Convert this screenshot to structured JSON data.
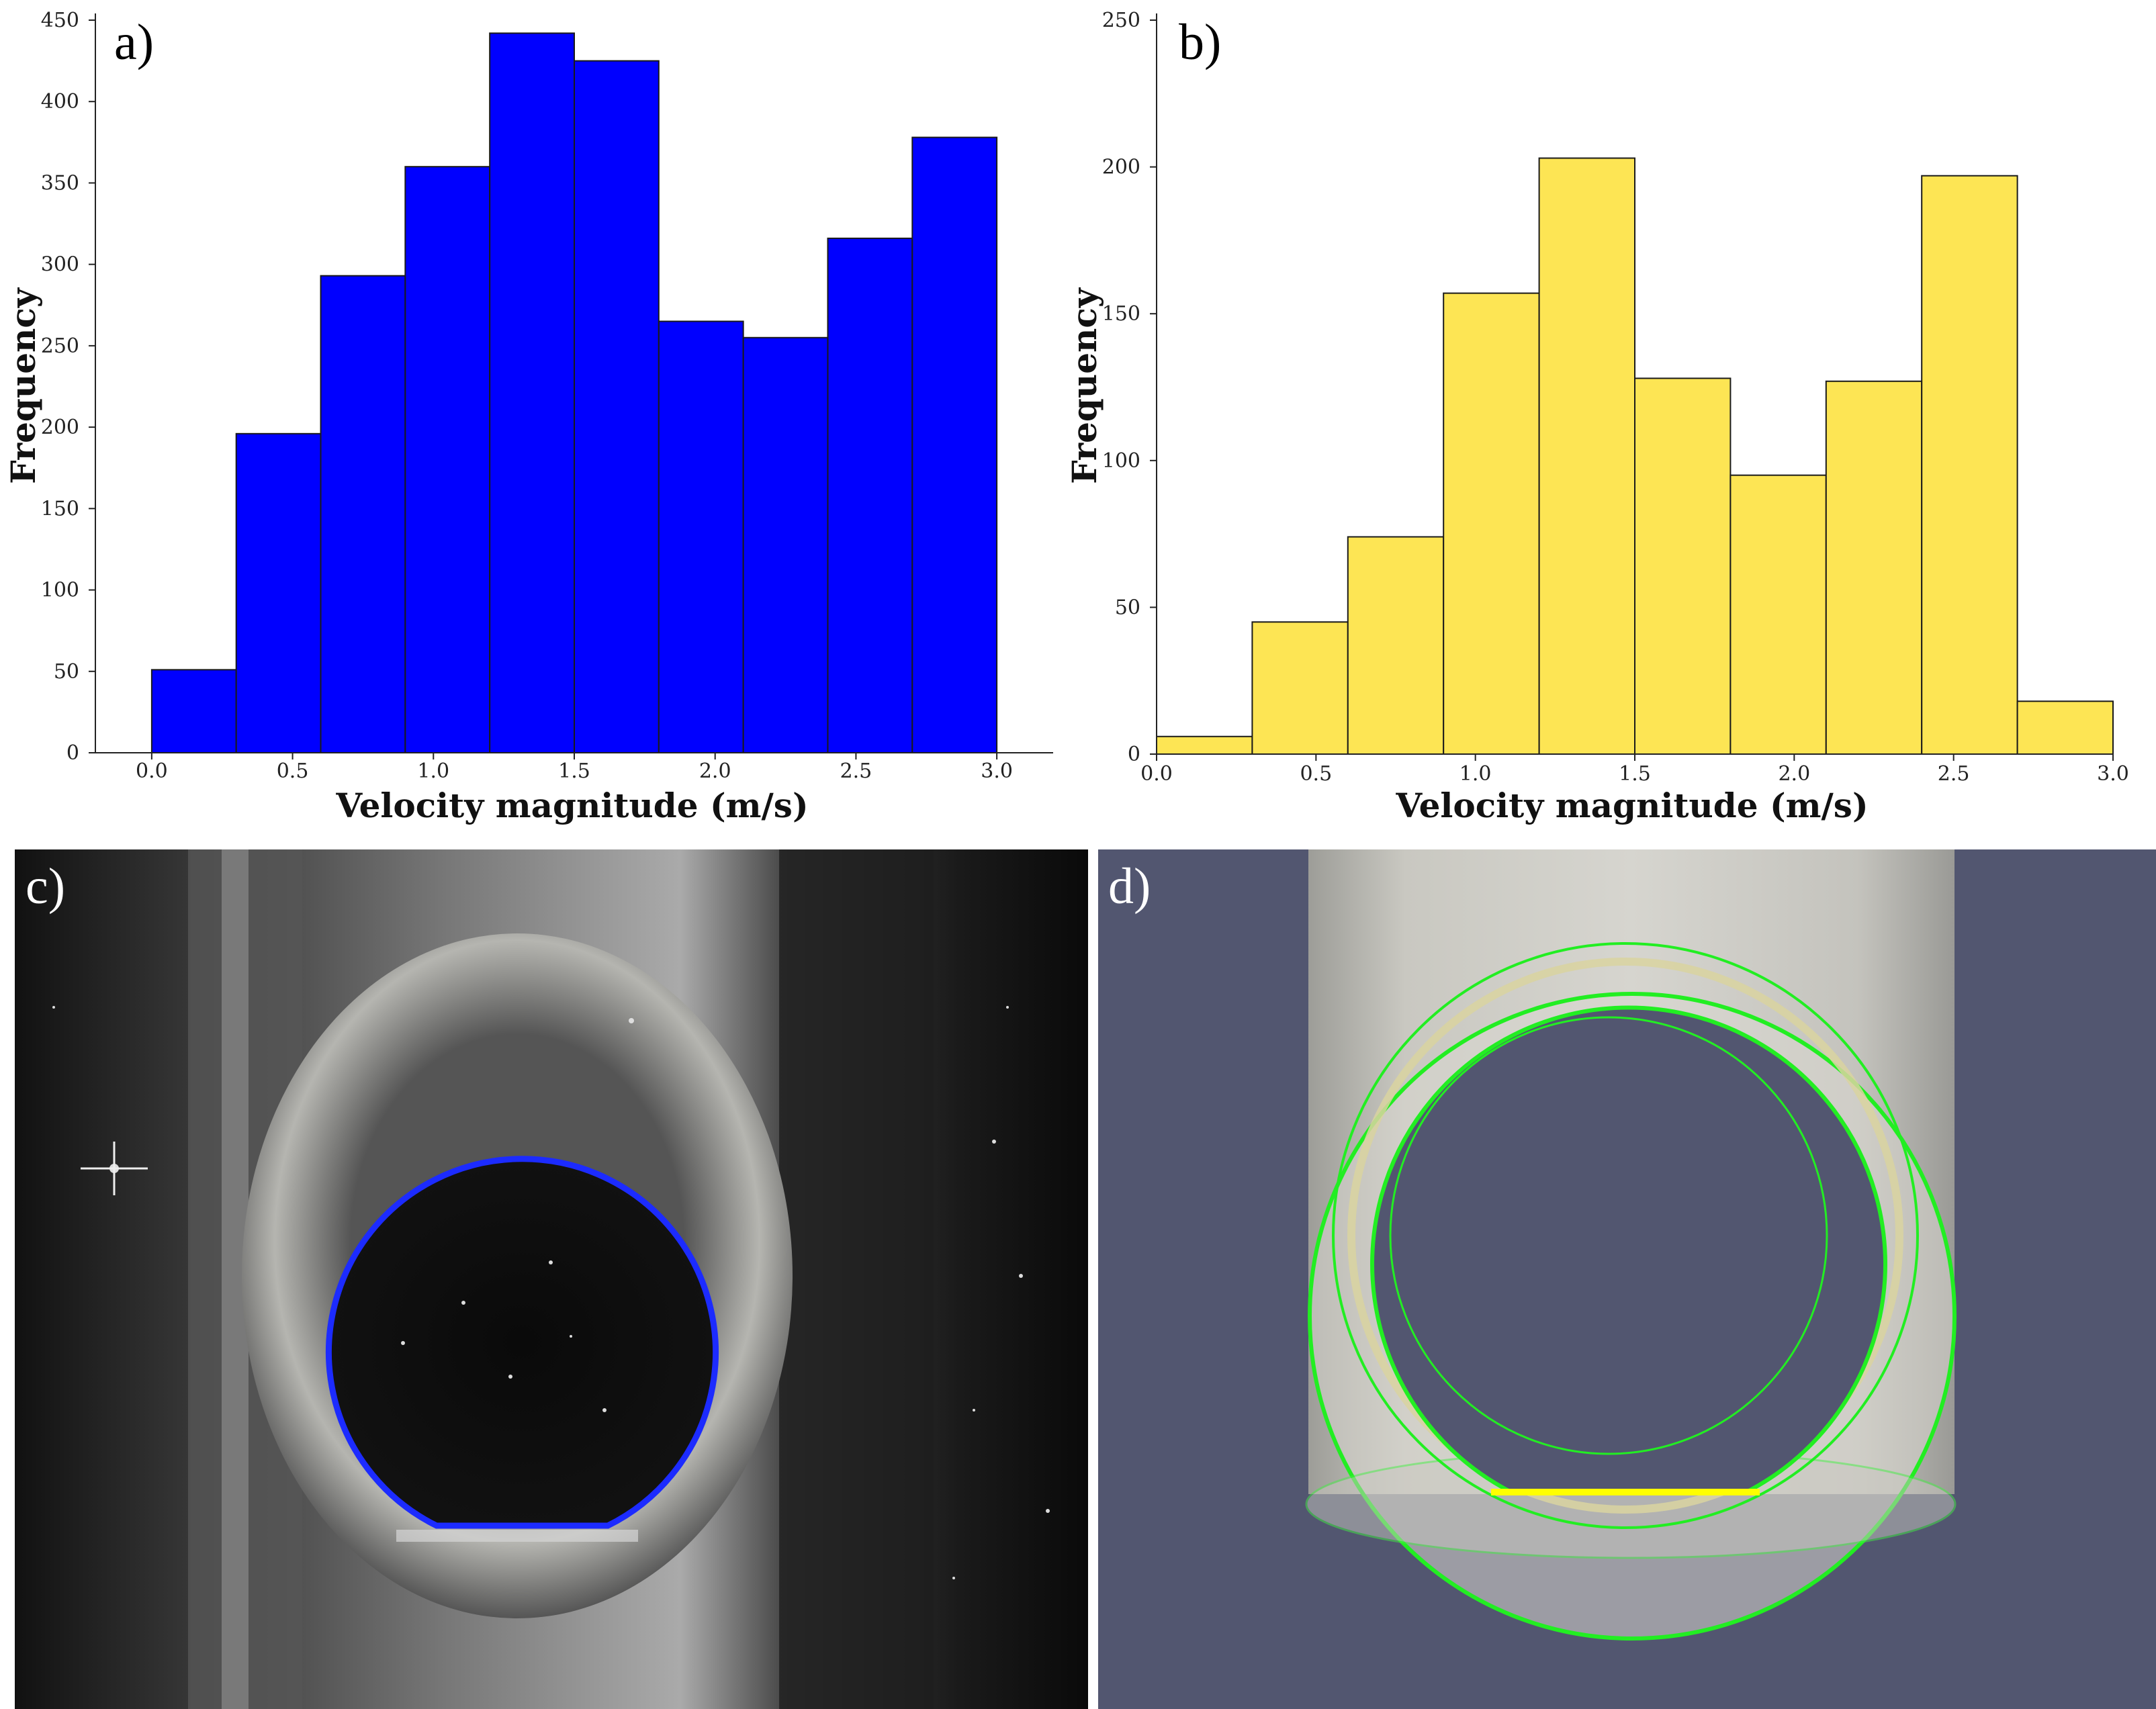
{
  "figure": {
    "panels": [
      {
        "id": "a",
        "label": "a)"
      },
      {
        "id": "b",
        "label": "b)"
      },
      {
        "id": "c",
        "label": "c)",
        "description": "Photograph of a transparent pipe section with a circular opening outlined in blue"
      },
      {
        "id": "d",
        "label": "d)",
        "description": "3D rendering of a cylindrical pipe with a circular cut highlighted in green and yellow"
      }
    ],
    "colors": {
      "bar_a": "#0000ff",
      "bar_b": "#fde554",
      "outline_c": "#1c2bff",
      "render_bg": "#525670",
      "green_outline": "#22ee22",
      "yellow_outline": "#ffff00"
    }
  },
  "chart_data": [
    {
      "type": "bar",
      "panel": "a",
      "bin_edges": [
        0.0,
        0.3,
        0.6,
        0.9,
        1.2,
        1.5,
        1.8,
        2.1,
        2.4,
        2.7,
        3.0
      ],
      "values": [
        51,
        196,
        293,
        360,
        442,
        425,
        265,
        255,
        316,
        378
      ],
      "xlabel": "Velocity magnitude (m/s)",
      "ylabel": "Frequency",
      "xlim": [
        -0.2,
        3.2
      ],
      "ylim": [
        0,
        450
      ],
      "xticks": [
        "0.0",
        "0.5",
        "1.0",
        "1.5",
        "2.0",
        "2.5",
        "3.0"
      ],
      "yticks": [
        "0",
        "50",
        "100",
        "150",
        "200",
        "250",
        "300",
        "350",
        "400",
        "450"
      ],
      "color": "#0000ff"
    },
    {
      "type": "bar",
      "panel": "b",
      "bin_edges": [
        0.0,
        0.3,
        0.6,
        0.9,
        1.2,
        1.5,
        1.8,
        2.1,
        2.4,
        2.7,
        3.0
      ],
      "values": [
        6,
        45,
        74,
        157,
        203,
        128,
        95,
        127,
        197,
        18
      ],
      "xlabel": "Velocity magnitude (m/s)",
      "ylabel": "Frequency",
      "xlim": [
        0.0,
        3.0
      ],
      "ylim": [
        0,
        250
      ],
      "xticks": [
        "0.0",
        "0.5",
        "1.0",
        "1.5",
        "2.0",
        "2.5",
        "3.0"
      ],
      "yticks": [
        "0",
        "50",
        "100",
        "150",
        "200",
        "250"
      ],
      "color": "#fde554"
    }
  ]
}
